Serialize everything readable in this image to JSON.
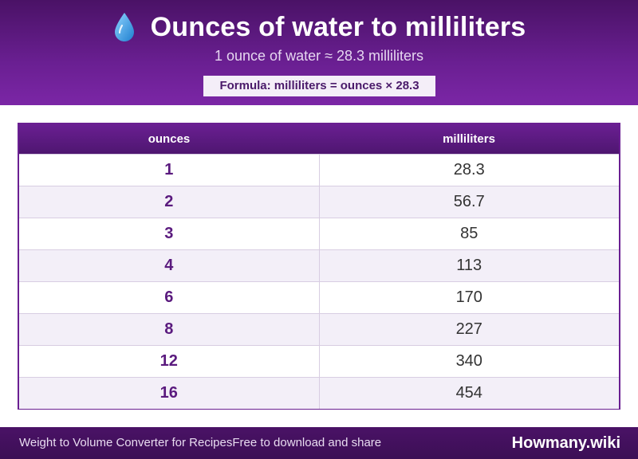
{
  "header": {
    "icon": "water-drop-icon",
    "title": "Ounces of water to milliliters",
    "subtitle": "1 ounce of water ≈ 28.3 milliliters",
    "formula": "Formula: milliliters = ounces × 28.3"
  },
  "table": {
    "columns": [
      "ounces",
      "milliliters"
    ],
    "rows": [
      {
        "ounces": "1",
        "milliliters": "28.3"
      },
      {
        "ounces": "2",
        "milliliters": "56.7"
      },
      {
        "ounces": "3",
        "milliliters": "85"
      },
      {
        "ounces": "4",
        "milliliters": "113"
      },
      {
        "ounces": "6",
        "milliliters": "170"
      },
      {
        "ounces": "8",
        "milliliters": "227"
      },
      {
        "ounces": "12",
        "milliliters": "340"
      },
      {
        "ounces": "16",
        "milliliters": "454"
      }
    ]
  },
  "footer": {
    "left_text_1": "Weight to Volume Converter for Recipes",
    "left_text_2": "Free to download and share",
    "brand": "Howmany.wiki"
  },
  "colors": {
    "header_purple": "#6a1f92",
    "dark_purple": "#4a1266",
    "row_alt": "#f3eff8",
    "drop_blue": "#3aa0e0"
  }
}
